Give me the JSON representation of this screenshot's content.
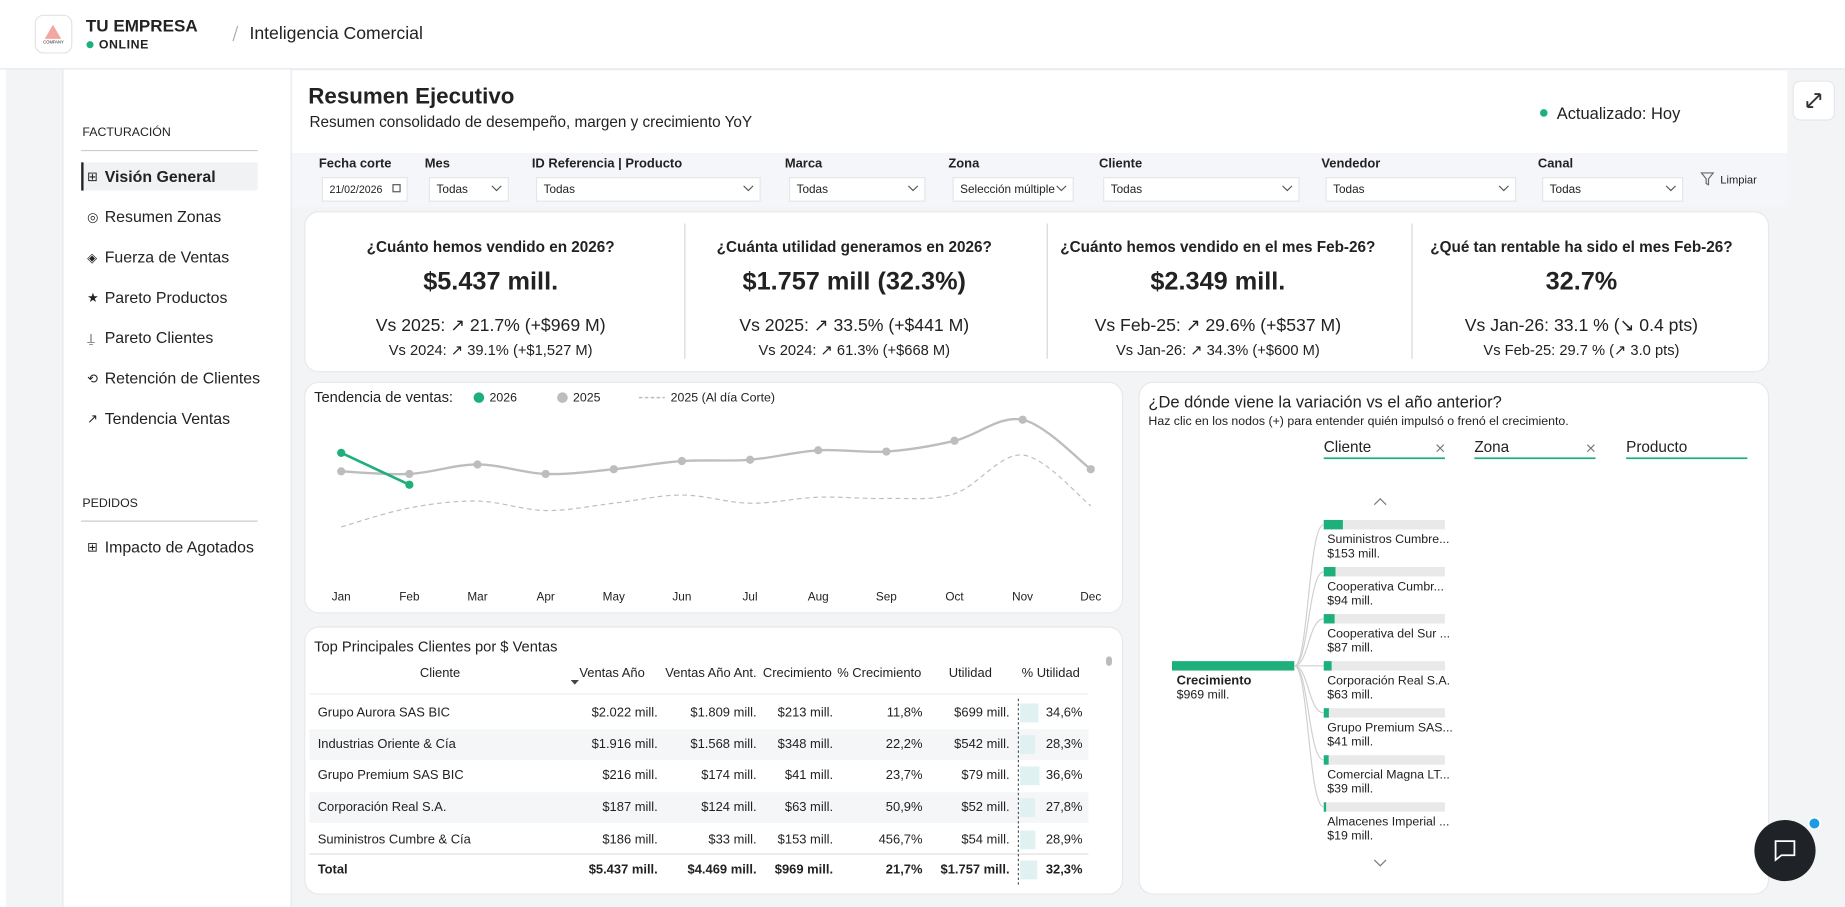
{
  "header": {
    "logo": "COMPANY",
    "company": "TU EMPRESA",
    "status": "ONLINE",
    "breadcrumb": "Inteligencia Comercial"
  },
  "sidebar": {
    "sections": [
      {
        "title": "FACTURACIÓN",
        "items": [
          {
            "icon": "⊞",
            "label": "Visión General"
          },
          {
            "icon": "◎",
            "label": "Resumen Zonas"
          },
          {
            "icon": "◈",
            "label": "Fuerza de Ventas"
          },
          {
            "icon": "★",
            "label": "Pareto Productos"
          },
          {
            "icon": "⍊",
            "label": "Pareto Clientes"
          },
          {
            "icon": "⟲",
            "label": "Retención de Clientes"
          },
          {
            "icon": "↗",
            "label": "Tendencia Ventas"
          }
        ]
      },
      {
        "title": "PEDIDOS",
        "items": [
          {
            "icon": "⊞",
            "label": "Impacto de Agotados"
          }
        ]
      }
    ]
  },
  "page": {
    "title": "Resumen Ejecutivo",
    "subtitle": "Resumen consolidado de desempeño, margen y crecimiento YoY",
    "updated": "Actualizado: Hoy"
  },
  "filters": {
    "items": [
      {
        "label": "Fecha corte",
        "value": "21/02/2026"
      },
      {
        "label": "Mes",
        "value": "Todas"
      },
      {
        "label": "ID Referencia | Producto",
        "value": "Todas"
      },
      {
        "label": "Marca",
        "value": "Todas"
      },
      {
        "label": "Zona",
        "value": "Selección múltiple"
      },
      {
        "label": "Cliente",
        "value": "Todas"
      },
      {
        "label": "Vendedor",
        "value": "Todas"
      },
      {
        "label": "Canal",
        "value": "Todas"
      }
    ],
    "clear": "Limpiar"
  },
  "kpis": [
    {
      "question": "¿Cuánto hemos vendido en 2026?",
      "value": "$5.437 mill.",
      "lines": [
        {
          "text": "Vs 2025: ↗ 21.7% (+$969 M)",
          "color": "#2e7d32"
        },
        {
          "text": "Vs 2024: ↗ 39.1% (+$1,527 M)",
          "color": "#2e7d32"
        }
      ]
    },
    {
      "question": "¿Cuánta utilidad generamos en 2026?",
      "value": "$1.757 mill (32.3%)",
      "lines": [
        {
          "text": "Vs 2025: ↗ 33.5% (+$441 M)",
          "color": "#2e7d32"
        },
        {
          "text": "Vs 2024: ↗ 61.3% (+$668 M)",
          "color": "#2e7d32"
        }
      ]
    },
    {
      "question": "¿Cuánto hemos vendido en el mes Feb-26?",
      "value": "$2.349 mill.",
      "lines": [
        {
          "text": "Vs Feb-25: ↗ 29.6% (+$537 M)",
          "color": "#2e7d32"
        },
        {
          "text": "Vs Jan-26: ↗ 34.3% (+$600 M)",
          "color": "#2e7d32"
        }
      ]
    },
    {
      "question": "¿Qué tan rentable ha sido el mes Feb-26?",
      "value": "32.7%",
      "lines": [
        {
          "text": "Vs Jan-26: 33.1 % (↘ 0.4 pts)",
          "color": "#e53935"
        },
        {
          "text": "Vs Feb-25: 29.7 % (↗ 3.0 pts)",
          "color": "#2e7d32"
        }
      ]
    }
  ],
  "trend": {
    "type": "line",
    "title": "Tendencia de ventas:",
    "categories": [
      "Jan",
      "Feb",
      "Mar",
      "Apr",
      "May",
      "Jun",
      "Jul",
      "Aug",
      "Sep",
      "Oct",
      "Nov",
      "Dec"
    ],
    "ylim": [
      0,
      4100
    ],
    "series": [
      {
        "name": "2026",
        "color": "#1db07a",
        "markers": true,
        "values": [
          3090,
          2350,
          null,
          null,
          null,
          null,
          null,
          null,
          null,
          null,
          null,
          null
        ]
      },
      {
        "name": "2025",
        "color": "#bdbdbd",
        "markers": true,
        "values": [
          2660,
          2600,
          2820,
          2600,
          2710,
          2900,
          2930,
          3150,
          3120,
          3370,
          3860,
          2710
        ]
      },
      {
        "name": "2025 (Al día Corte)",
        "color": "#bdbdbd",
        "dashed": true,
        "values": [
          1370,
          1810,
          1970,
          1750,
          1920,
          2110,
          1920,
          2060,
          2030,
          2140,
          3040,
          1860
        ]
      }
    ]
  },
  "table": {
    "title": "Top Principales Clientes por $ Ventas",
    "columns": [
      "Cliente",
      "Ventas Año",
      "Ventas Año Ant.",
      "Crecimiento",
      "% Crecimiento",
      "Utilidad",
      "% Utilidad"
    ],
    "growth_color": "#1f8a4c",
    "bar_color": "#dff1f1",
    "rows": [
      [
        "Grupo Aurora SAS BIC",
        "$2.022 mill.",
        "$1.809 mill.",
        "$213 mill.",
        "11,8%",
        "$699 mill.",
        "34,6%"
      ],
      [
        "Industrias Oriente & Cía",
        "$1.916 mill.",
        "$1.568 mill.",
        "$348 mill.",
        "22,2%",
        "$542 mill.",
        "28,3%"
      ],
      [
        "Grupo Premium SAS BIC",
        "$216 mill.",
        "$174 mill.",
        "$41 mill.",
        "23,7%",
        "$79 mill.",
        "36,6%"
      ],
      [
        "Corporación Real S.A.",
        "$187 mill.",
        "$124 mill.",
        "$63 mill.",
        "50,9%",
        "$52 mill.",
        "27,8%"
      ],
      [
        "Suministros Cumbre & Cía",
        "$186 mill.",
        "$33 mill.",
        "$153 mill.",
        "456,7%",
        "$54 mill.",
        "28,9%"
      ]
    ],
    "total": [
      "Total",
      "$5.437 mill.",
      "$4.469 mill.",
      "$969 mill.",
      "21,7%",
      "$1.757 mill.",
      "32,3%"
    ]
  },
  "decomposition": {
    "title": "¿De dónde viene la variación vs el año anterior?",
    "subtitle": "Haz clic en los nodos (+) para entender quién impulsó o frenó el crecimiento.",
    "levels": [
      "Cliente",
      "Zona",
      "Producto"
    ],
    "color": "#1db07a",
    "root": {
      "name": "Crecimiento",
      "value": 969,
      "value_label": "$969 mill."
    },
    "nodes": [
      {
        "name": "Suministros Cumbre...",
        "value": 153,
        "value_label": "$153 mill."
      },
      {
        "name": "Cooperativa Cumbr...",
        "value": 94,
        "value_label": "$94 mill."
      },
      {
        "name": "Cooperativa del Sur ...",
        "value": 87,
        "value_label": "$87 mill."
      },
      {
        "name": "Corporación Real S.A.",
        "value": 63,
        "value_label": "$63 mill."
      },
      {
        "name": "Grupo Premium SAS...",
        "value": 41,
        "value_label": "$41 mill."
      },
      {
        "name": "Comercial Magna LT...",
        "value": 39,
        "value_label": "$39 mill."
      },
      {
        "name": "Almacenes Imperial ...",
        "value": 19,
        "value_label": "$19 mill."
      }
    ]
  }
}
